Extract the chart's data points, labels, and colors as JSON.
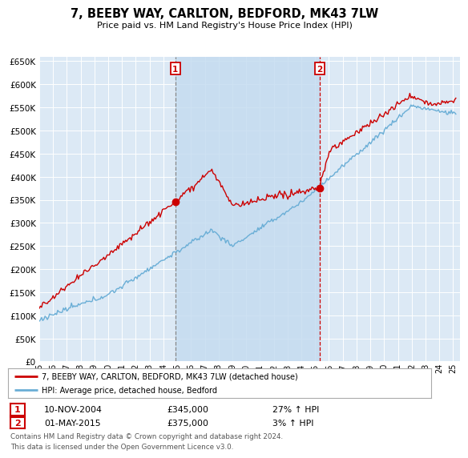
{
  "title": "7, BEEBY WAY, CARLTON, BEDFORD, MK43 7LW",
  "subtitle": "Price paid vs. HM Land Registry's House Price Index (HPI)",
  "ylim": [
    0,
    660000
  ],
  "yticks": [
    0,
    50000,
    100000,
    150000,
    200000,
    250000,
    300000,
    350000,
    400000,
    450000,
    500000,
    550000,
    600000,
    650000
  ],
  "xlim_start": 1995.0,
  "xlim_end": 2025.5,
  "background_color": "#dce9f5",
  "fig_bg_color": "#ffffff",
  "hpi_color": "#6aaed6",
  "price_color": "#cc0000",
  "shade_color": "#c5dcf0",
  "sale1_x": 2004.87,
  "sale1_y": 345000,
  "sale2_x": 2015.33,
  "sale2_y": 375000,
  "legend_line1": "7, BEEBY WAY, CARLTON, BEDFORD, MK43 7LW (detached house)",
  "legend_line2": "HPI: Average price, detached house, Bedford",
  "annotation1_date": "10-NOV-2004",
  "annotation1_price": "£345,000",
  "annotation1_hpi": "27% ↑ HPI",
  "annotation2_date": "01-MAY-2015",
  "annotation2_price": "£375,000",
  "annotation2_hpi": "3% ↑ HPI",
  "footer": "Contains HM Land Registry data © Crown copyright and database right 2024.\nThis data is licensed under the Open Government Licence v3.0."
}
